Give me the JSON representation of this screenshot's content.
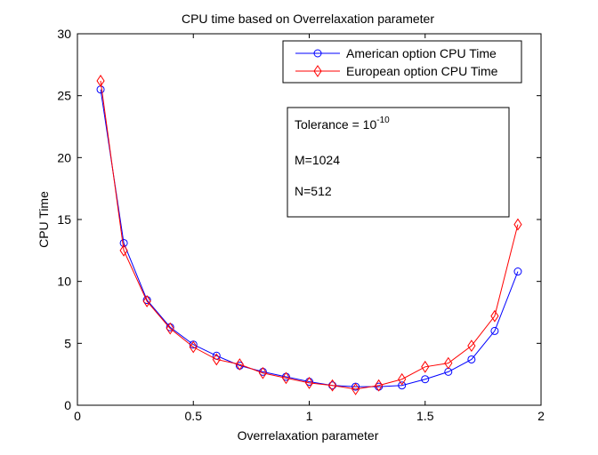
{
  "chart_data": {
    "type": "line",
    "title": "CPU time based on Overrelaxation parameter",
    "xlabel": "Overrelaxation parameter",
    "ylabel": "CPU Time",
    "xlim": [
      0,
      2
    ],
    "ylim": [
      0,
      30
    ],
    "x_ticks": [
      0,
      0.5,
      1,
      1.5,
      2
    ],
    "x_tick_labels": [
      "0",
      "0.5",
      "1",
      "1.5",
      "2"
    ],
    "y_ticks": [
      0,
      5,
      10,
      15,
      20,
      25,
      30
    ],
    "y_tick_labels": [
      "0",
      "5",
      "10",
      "15",
      "20",
      "25",
      "30"
    ],
    "grid": false,
    "legend_position": "top-right",
    "x": [
      0.1,
      0.2,
      0.3,
      0.4,
      0.5,
      0.6,
      0.7,
      0.8,
      0.9,
      1.0,
      1.1,
      1.2,
      1.3,
      1.4,
      1.5,
      1.6,
      1.7,
      1.8,
      1.9
    ],
    "series": [
      {
        "name": "American option CPU Time",
        "color": "#0000ff",
        "marker": "circle",
        "values": [
          25.5,
          13.1,
          8.5,
          6.3,
          4.9,
          4.0,
          3.2,
          2.7,
          2.3,
          1.9,
          1.6,
          1.5,
          1.5,
          1.6,
          2.1,
          2.7,
          3.7,
          6.0,
          10.8
        ]
      },
      {
        "name": "European option CPU Time",
        "color": "#ff0000",
        "marker": "diamond",
        "values": [
          26.2,
          12.5,
          8.4,
          6.2,
          4.7,
          3.7,
          3.3,
          2.6,
          2.2,
          1.8,
          1.6,
          1.3,
          1.6,
          2.1,
          3.1,
          3.4,
          4.8,
          7.2,
          14.6
        ]
      }
    ],
    "annotation": {
      "tolerance_label": "Tolerance = 10",
      "tolerance_exponent": "-10",
      "m_label": "M=1024",
      "n_label": "N=512"
    }
  }
}
